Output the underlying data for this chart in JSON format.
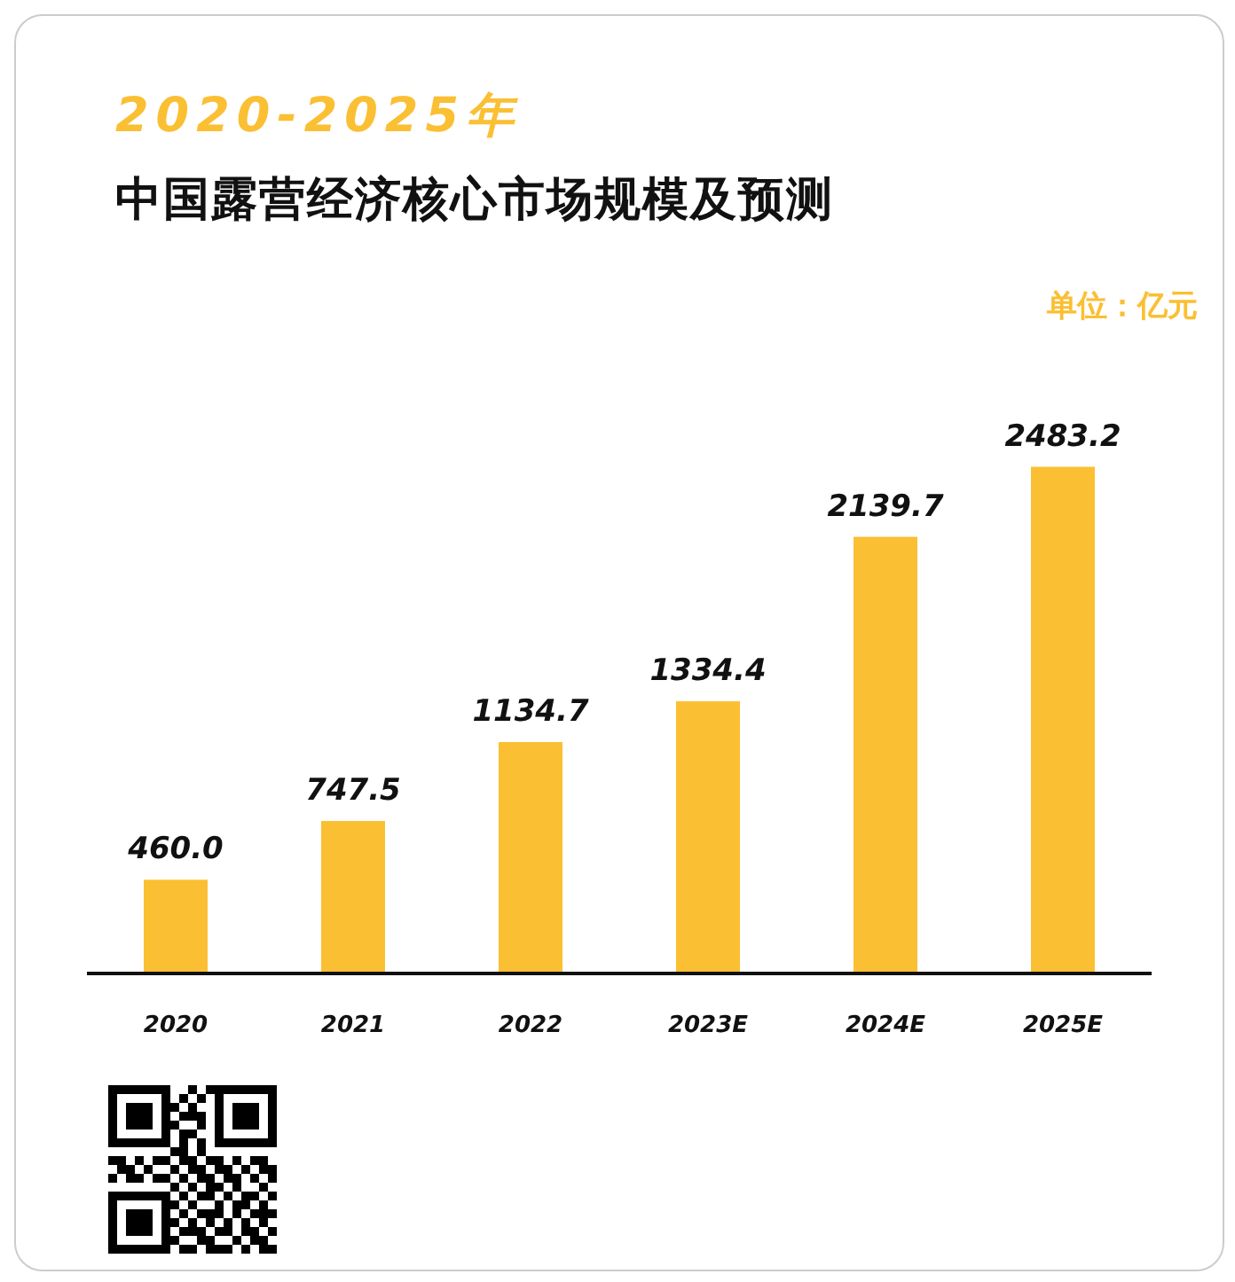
{
  "chart_data": {
    "type": "bar",
    "title": "2020-2025年",
    "subtitle": "中国露营经济核心市场规模及预测",
    "ylabel": "单位：亿元",
    "categories": [
      "2020",
      "2021",
      "2022",
      "2023E",
      "2024E",
      "2025E"
    ],
    "values": [
      460.0,
      747.5,
      1134.7,
      1334.4,
      2139.7,
      2483.2
    ],
    "value_labels": [
      "460.0",
      "747.5",
      "1134.7",
      "1334.4",
      "2139.7",
      "2483.2"
    ],
    "color": "#fbbf33"
  }
}
